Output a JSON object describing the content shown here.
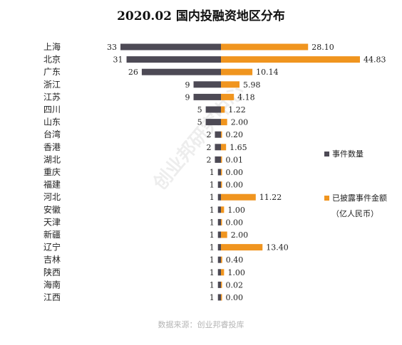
{
  "colors": {
    "count": "#4d4a55",
    "amount": "#f0951f"
  },
  "legend": {
    "count": "事件数量",
    "amount": "已披露事件金额",
    "amount_unit": "（亿人民币）"
  },
  "watermark": "创业邦研究中心",
  "source": "数据来源：创业邦睿投库",
  "chart_data": {
    "type": "bar",
    "title": "2020.02 国内投融资地区分布",
    "orientation": "horizontal-butterfly",
    "categories": [
      "上海",
      "北京",
      "广东",
      "浙江",
      "江苏",
      "四川",
      "山东",
      "台湾",
      "香港",
      "湖北",
      "重庆",
      "福建",
      "河北",
      "安徽",
      "天津",
      "新疆",
      "辽宁",
      "吉林",
      "陕西",
      "海南",
      "江西"
    ],
    "series": [
      {
        "name": "事件数量",
        "direction": "left",
        "values": [
          33,
          31,
          26,
          9,
          9,
          5,
          5,
          2,
          2,
          2,
          1,
          1,
          1,
          1,
          1,
          1,
          1,
          1,
          1,
          1,
          1
        ],
        "labels": [
          "33",
          "31",
          "26",
          "9",
          "9",
          "5",
          "5",
          "2",
          "2",
          "2",
          "1",
          "1",
          "1",
          "1",
          "1",
          "1",
          "1",
          "1",
          "1",
          "1",
          "1"
        ]
      },
      {
        "name": "已披露事件金额",
        "direction": "right",
        "values": [
          28.1,
          44.83,
          10.14,
          5.98,
          4.18,
          1.22,
          2.0,
          0.2,
          1.65,
          0.01,
          0.0,
          0.0,
          11.22,
          1.0,
          0.0,
          2.0,
          13.4,
          0.4,
          1.0,
          0.02,
          0.0
        ],
        "labels": [
          "28.10",
          "44.83",
          "10.14",
          "5.98",
          "4.18",
          "1.22",
          "2.00",
          "0.20",
          "1.65",
          "0.01",
          "0.00",
          "0.00",
          "11.22",
          "1.00",
          "0.00",
          "2.00",
          "13.40",
          "0.40",
          "1.00",
          "0.02",
          "0.00"
        ]
      }
    ],
    "grid": false,
    "legend_position": "right"
  }
}
